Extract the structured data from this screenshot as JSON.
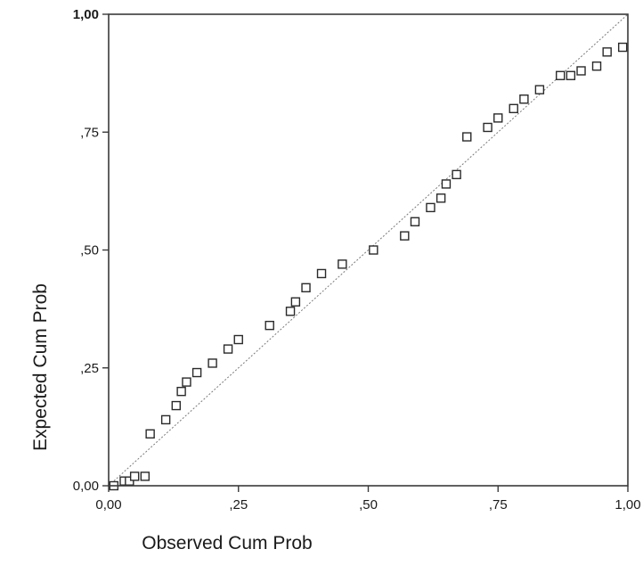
{
  "chart_data": {
    "type": "scatter",
    "title": "",
    "xlabel": "Observed Cum Prob",
    "ylabel": "Expected Cum Prob",
    "xlim": [
      0,
      1
    ],
    "ylim": [
      0,
      1
    ],
    "x_ticks": [
      0,
      0.25,
      0.5,
      0.75,
      1
    ],
    "x_tick_labels": [
      "0,00",
      ",25",
      ",50",
      ",75",
      "1,00"
    ],
    "y_ticks": [
      0,
      0.25,
      0.5,
      0.75,
      1
    ],
    "y_tick_labels": [
      "0,00",
      ",25",
      ",50",
      ",75",
      "1,00"
    ],
    "grid": false,
    "reference_line": "diagonal",
    "marker": "open-square",
    "series": [
      {
        "points": [
          [
            0.01,
            0.0
          ],
          [
            0.03,
            0.01
          ],
          [
            0.04,
            0.01
          ],
          [
            0.05,
            0.02
          ],
          [
            0.07,
            0.02
          ],
          [
            0.08,
            0.11
          ],
          [
            0.11,
            0.14
          ],
          [
            0.13,
            0.17
          ],
          [
            0.14,
            0.2
          ],
          [
            0.15,
            0.22
          ],
          [
            0.17,
            0.24
          ],
          [
            0.2,
            0.26
          ],
          [
            0.23,
            0.29
          ],
          [
            0.25,
            0.31
          ],
          [
            0.31,
            0.34
          ],
          [
            0.35,
            0.37
          ],
          [
            0.36,
            0.39
          ],
          [
            0.38,
            0.42
          ],
          [
            0.41,
            0.45
          ],
          [
            0.45,
            0.47
          ],
          [
            0.51,
            0.5
          ],
          [
            0.57,
            0.53
          ],
          [
            0.59,
            0.56
          ],
          [
            0.62,
            0.59
          ],
          [
            0.64,
            0.61
          ],
          [
            0.65,
            0.64
          ],
          [
            0.67,
            0.66
          ],
          [
            0.69,
            0.74
          ],
          [
            0.73,
            0.76
          ],
          [
            0.75,
            0.78
          ],
          [
            0.78,
            0.8
          ],
          [
            0.8,
            0.82
          ],
          [
            0.83,
            0.84
          ],
          [
            0.87,
            0.87
          ],
          [
            0.89,
            0.87
          ],
          [
            0.91,
            0.88
          ],
          [
            0.94,
            0.89
          ],
          [
            0.96,
            0.92
          ],
          [
            0.99,
            0.93
          ]
        ]
      }
    ]
  }
}
